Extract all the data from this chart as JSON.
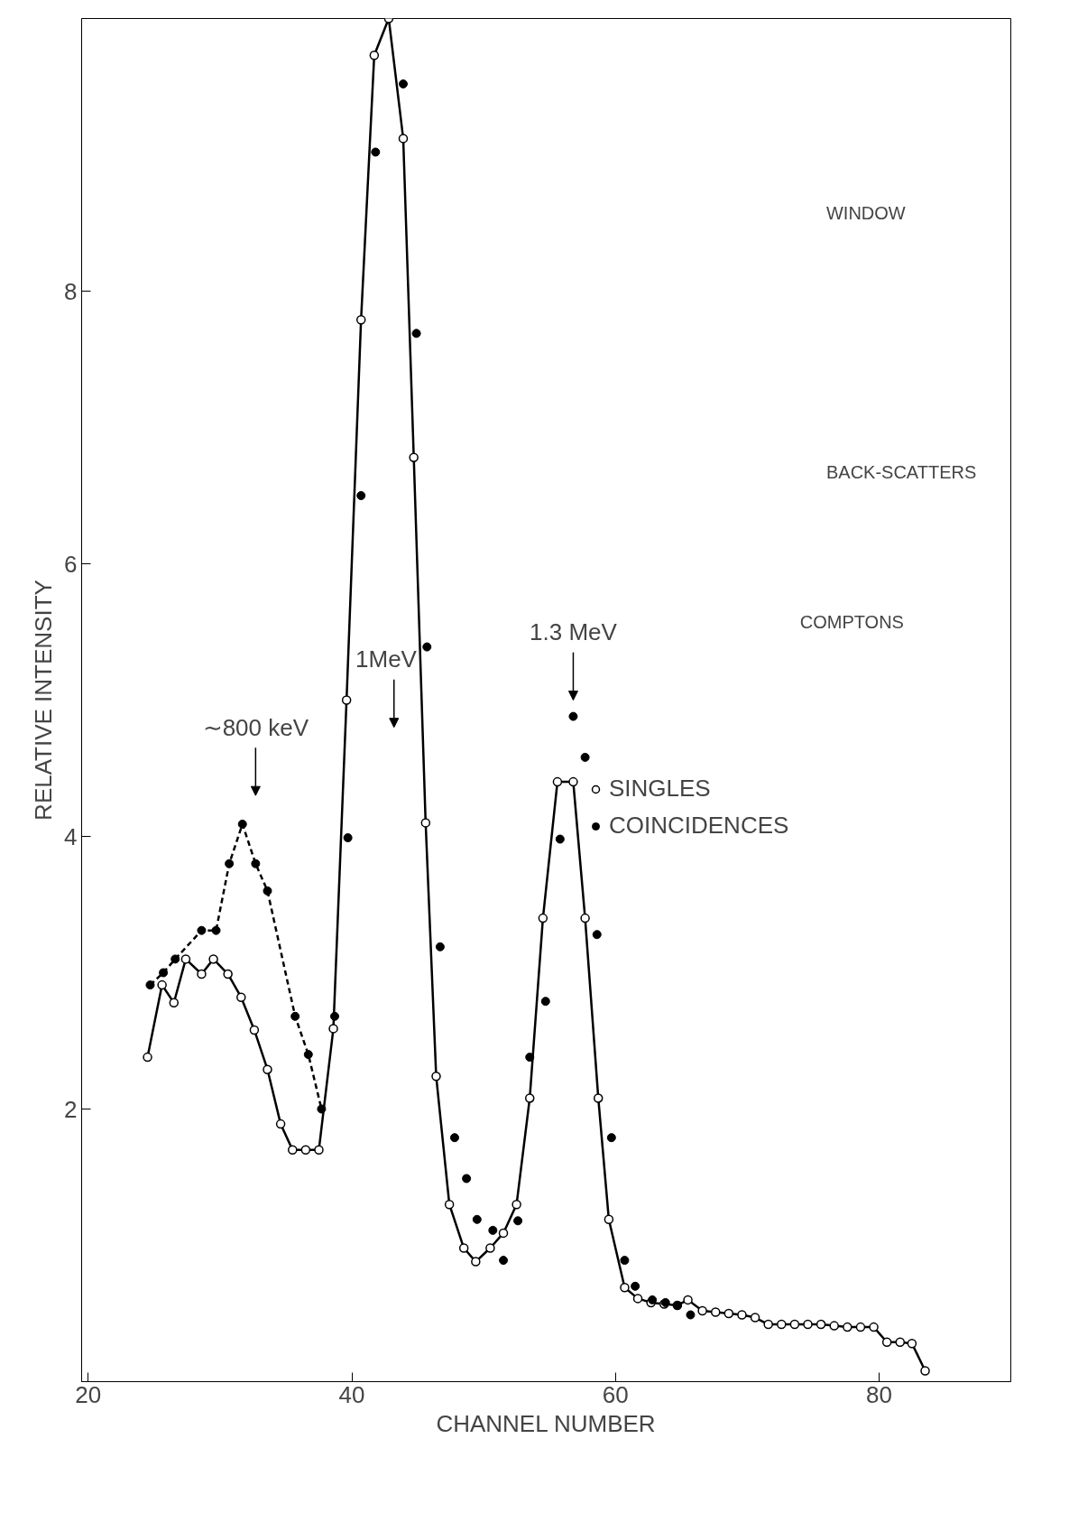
{
  "chart_data": {
    "type": "scatter",
    "xlabel": "CHANNEL NUMBER",
    "ylabel": "RELATIVE INTENSITY",
    "xlim": [
      19.5,
      90
    ],
    "ylim": [
      0,
      10
    ],
    "xticks": [
      20,
      40,
      60,
      80
    ],
    "yticks": [
      2,
      4,
      6,
      8
    ],
    "grid": false,
    "legend": "right",
    "marker": "circle",
    "series": [
      {
        "name": "SINGLES",
        "type": "line",
        "color": "#000000",
        "line_style": "solid",
        "x": [
          24.5,
          25.6,
          26.5,
          27.4,
          28.6,
          29.5,
          30.6,
          31.6,
          32.6,
          33.6,
          34.6,
          35.5,
          36.5,
          37.5,
          38.6,
          39.6,
          40.7,
          41.7,
          42.8,
          43.9,
          44.7,
          45.6,
          46.4,
          47.4,
          48.5,
          49.4,
          50.5,
          51.5,
          52.5,
          53.5,
          54.5,
          55.6,
          56.8,
          57.7,
          58.7,
          59.5,
          60.7,
          61.7,
          62.7,
          63.7,
          64.7,
          65.5,
          66.6,
          67.6,
          68.6,
          69.6,
          70.6,
          71.6,
          72.6,
          73.6,
          74.6,
          75.6,
          76.6,
          77.6,
          78.6,
          79.6,
          80.6,
          81.6,
          82.5,
          83.5
        ],
        "values": [
          2.38,
          2.91,
          2.78,
          3.1,
          2.99,
          3.1,
          2.99,
          2.82,
          2.58,
          2.29,
          1.89,
          1.7,
          1.7,
          1.7,
          2.59,
          5.0,
          7.79,
          9.73,
          10.0,
          9.12,
          6.78,
          4.1,
          2.24,
          1.3,
          0.98,
          0.88,
          0.98,
          1.09,
          1.3,
          2.08,
          3.4,
          4.4,
          4.4,
          3.4,
          2.08,
          1.19,
          0.69,
          0.61,
          0.58,
          0.57,
          0.56,
          0.6,
          0.52,
          0.51,
          0.5,
          0.49,
          0.47,
          0.42,
          0.42,
          0.42,
          0.42,
          0.42,
          0.41,
          0.4,
          0.4,
          0.4,
          0.29,
          0.29,
          0.28,
          0.08
        ]
      },
      {
        "name": "COINCIDENCES",
        "color": "#000000",
        "x": [
          24.7,
          25.7,
          26.6,
          28.6,
          29.7,
          30.7,
          31.7,
          32.7,
          33.6,
          35.7,
          36.7,
          37.7,
          38.7,
          39.7,
          40.7,
          41.8,
          43.9,
          44.9,
          45.7,
          46.7,
          47.8,
          48.7,
          49.5,
          50.7,
          51.5,
          52.6,
          53.5,
          54.7,
          55.8,
          56.8,
          57.7,
          58.6,
          59.7,
          60.7,
          61.5,
          62.8,
          63.8,
          64.7,
          65.7
        ],
        "values": [
          2.91,
          3.0,
          3.1,
          3.31,
          3.31,
          3.8,
          4.09,
          3.8,
          3.6,
          2.68,
          2.4,
          2.0,
          2.68,
          3.99,
          6.5,
          9.02,
          9.52,
          7.69,
          5.39,
          3.19,
          1.79,
          1.49,
          1.19,
          1.11,
          0.89,
          1.18,
          2.38,
          2.79,
          3.98,
          4.88,
          4.58,
          3.28,
          1.79,
          0.89,
          0.7,
          0.6,
          0.58,
          0.56,
          0.49
        ]
      },
      {
        "type": "line",
        "color": "#000000",
        "line_style": "dashed",
        "marker": "none",
        "x": [
          24.7,
          25.7,
          26.6,
          28.6,
          29.7,
          30.7,
          31.7,
          32.7,
          33.6,
          35.7,
          36.7,
          37.7
        ],
        "values": [
          2.91,
          3.0,
          3.1,
          3.31,
          3.31,
          3.8,
          4.09,
          3.8,
          3.6,
          2.68,
          2.4,
          2.0
        ]
      }
    ],
    "annotations": [
      "∼800 keV",
      "1MeV",
      "1.3 MeV",
      "WINDOW",
      "BACK-SCATTERS",
      "COMPTONS"
    ]
  }
}
